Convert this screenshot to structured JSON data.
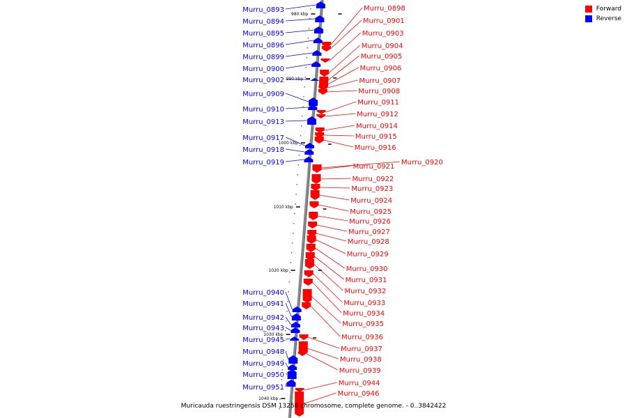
{
  "legend": {
    "forward": {
      "label": "Forward",
      "color": "#ff0000"
    },
    "reverse": {
      "label": "Reverse",
      "color": "#0000ff"
    }
  },
  "caption": "Muricauda ruestringensis DSM 13258 chromosome, complete genome. - 0..3842422",
  "ticks": [
    "980 kbp",
    "990 kbp",
    "1000 kbp",
    "1010 kbp",
    "1020 kbp",
    "1030 kbp",
    "1040 kbp"
  ],
  "genes_reverse": [
    "Murru_0893",
    "Murru_0894",
    "Murru_0895",
    "Murru_0896",
    "Murru_0899",
    "Murru_0900",
    "Murru_0902",
    "Murru_0909",
    "Murru_0910",
    "Murru_0913",
    "Murru_0917",
    "Murru_0918",
    "Murru_0919",
    "Murru_0940",
    "Murru_0941",
    "Murru_0942",
    "Murru_0943",
    "Murru_0945",
    "Murru_0948",
    "Murru_0949",
    "Murru_0950",
    "Murru_0951"
  ],
  "genes_forward": [
    "Murru_0898",
    "Murru_0901",
    "Murru_0903",
    "Murru_0904",
    "Murru_0905",
    "Murru_0906",
    "Murru_0907",
    "Murru_0908",
    "Murru_0911",
    "Murru_0912",
    "Murru_0914",
    "Murru_0915",
    "Murru_0916",
    "Murru_0920",
    "Murru_0921",
    "Murru_0922",
    "Murru_0923",
    "Murru_0924",
    "Murru_0925",
    "Murru_0926",
    "Murru_0927",
    "Murru_0928",
    "Murru_0929",
    "Murru_0930",
    "Murru_0931",
    "Murru_0932",
    "Murru_0933",
    "Murru_0934",
    "Murru_0935",
    "Murru_0936",
    "Murru_0937",
    "Murru_0938",
    "Murru_0939",
    "Murru_0944",
    "Murru_0946"
  ]
}
